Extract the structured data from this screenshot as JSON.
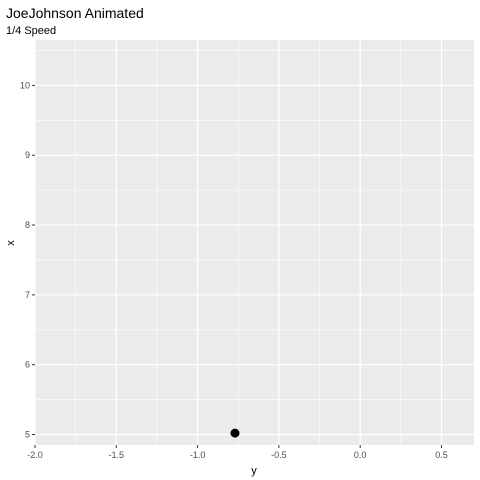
{
  "chart_data": {
    "type": "scatter",
    "title": "JoeJohnson Animated",
    "subtitle": "1/4 Speed",
    "xlabel": "y",
    "ylabel": "x",
    "xlim": [
      -2.0,
      0.7
    ],
    "ylim": [
      4.85,
      10.65
    ],
    "x_ticks": [
      -2.0,
      -1.5,
      -1.0,
      -0.5,
      0.0,
      0.5
    ],
    "x_tick_labels": [
      "-2.0",
      "-1.5",
      "-1.0",
      "-0.5",
      "0.0",
      "0.5"
    ],
    "y_ticks": [
      5,
      6,
      7,
      8,
      9,
      10
    ],
    "y_tick_labels": [
      "5",
      "6",
      "7",
      "8",
      "9",
      "10"
    ],
    "grid": true,
    "points": [
      {
        "x": -0.77,
        "y": 5.02
      }
    ],
    "colors": {
      "panel": "#ebebeb",
      "grid": "#ffffff",
      "point": "#000000"
    }
  }
}
